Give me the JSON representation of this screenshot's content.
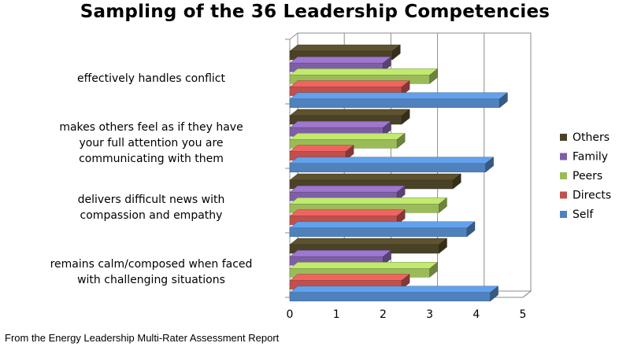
{
  "chart_data": {
    "type": "bar",
    "orientation": "horizontal",
    "title": "Sampling of the 36 Leadership Competencies",
    "xlabel": "",
    "ylabel": "",
    "xlim": [
      0,
      5
    ],
    "x_ticks": [
      "0",
      "1",
      "2",
      "3",
      "4",
      "5"
    ],
    "grid": true,
    "legend_position": "right",
    "categories": [
      [
        "effectively handles conflict"
      ],
      [
        "makes others feel as if they have",
        "your full attention you are",
        "communicating with them"
      ],
      [
        "delivers difficult news with",
        "compassion and empathy"
      ],
      [
        "remains calm/composed when faced",
        "with challenging situations"
      ]
    ],
    "series": [
      {
        "name": "Others",
        "color": "#4a4226",
        "values": [
          2.2,
          2.4,
          3.5,
          3.2
        ]
      },
      {
        "name": "Family",
        "color": "#7e5fa6",
        "values": [
          2.0,
          2.0,
          2.3,
          2.0
        ]
      },
      {
        "name": "Peers",
        "color": "#9bbb59",
        "values": [
          3.0,
          2.3,
          3.2,
          3.0
        ]
      },
      {
        "name": "Directs",
        "color": "#c0504d",
        "values": [
          2.4,
          1.2,
          2.3,
          2.4
        ]
      },
      {
        "name": "Self",
        "color": "#4f81bd",
        "values": [
          4.5,
          4.2,
          3.8,
          4.3
        ]
      }
    ],
    "legend_order": [
      "Others",
      "Family",
      "Peers",
      "Directs",
      "Self"
    ]
  },
  "footer": {
    "source": "From the Energy Leadership Multi-Rater Assessment Report"
  }
}
